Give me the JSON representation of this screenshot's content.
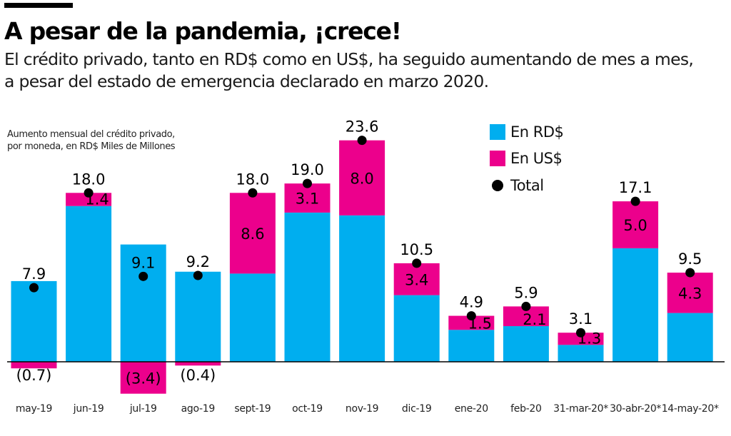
{
  "title": "A pesar de la pandemia, ¡crece!",
  "subtitle_lines": [
    "El crédito privado, tanto en RD$ como en US$, ha seguido aumentando de mes a mes,",
    "a pesar del estado de emergencia declarado en marzo 2020."
  ],
  "description_lines": [
    "Aumento mensual del crédito privado,",
    "por moneda, en RD$ Miles de Millones"
  ],
  "legend": {
    "rd": "En RD$",
    "us": "En US$",
    "total": "Total"
  },
  "colors": {
    "rd": "#00aeef",
    "us": "#ec008c",
    "total": "#000000",
    "baseline": "#000000"
  },
  "chart_data": {
    "type": "bar",
    "stacked": true,
    "title": "A pesar de la pandemia, ¡crece!",
    "ylabel": "RD$ Miles de Millones",
    "ylim": [
      -3.4,
      23.6
    ],
    "categories": [
      "may-19",
      "jun-19",
      "jul-19",
      "ago-19",
      "sept-19",
      "oct-19",
      "nov-19",
      "dic-19",
      "ene-20",
      "feb-20",
      "31-mar-20*",
      "30-abr-20*",
      "14-may-20*"
    ],
    "series": [
      {
        "name": "En RD$",
        "values": [
          8.6,
          16.6,
          12.5,
          9.6,
          9.4,
          15.9,
          15.6,
          7.1,
          3.4,
          3.8,
          1.8,
          12.1,
          5.2
        ]
      },
      {
        "name": "En US$",
        "values": [
          -0.7,
          1.4,
          -3.4,
          -0.4,
          8.6,
          3.1,
          8.0,
          3.4,
          1.5,
          2.1,
          1.3,
          5.0,
          4.3
        ]
      }
    ],
    "totals": [
      7.9,
      18.0,
      9.1,
      9.2,
      18.0,
      19.0,
      23.6,
      10.5,
      4.9,
      5.9,
      3.1,
      17.1,
      9.5
    ],
    "total_labels": [
      "7.9",
      "18.0",
      "9.1",
      "9.2",
      "18.0",
      "19.0",
      "23.6",
      "10.5",
      "4.9",
      "5.9",
      "3.1",
      "17.1",
      "9.5"
    ],
    "us_labels": [
      "(0.7)",
      "1.4",
      "(3.4)",
      "(0.4)",
      "8.6",
      "3.1",
      "8.0",
      "3.4",
      "1.5",
      "2.1",
      "1.3",
      "5.0",
      "4.3"
    ]
  }
}
